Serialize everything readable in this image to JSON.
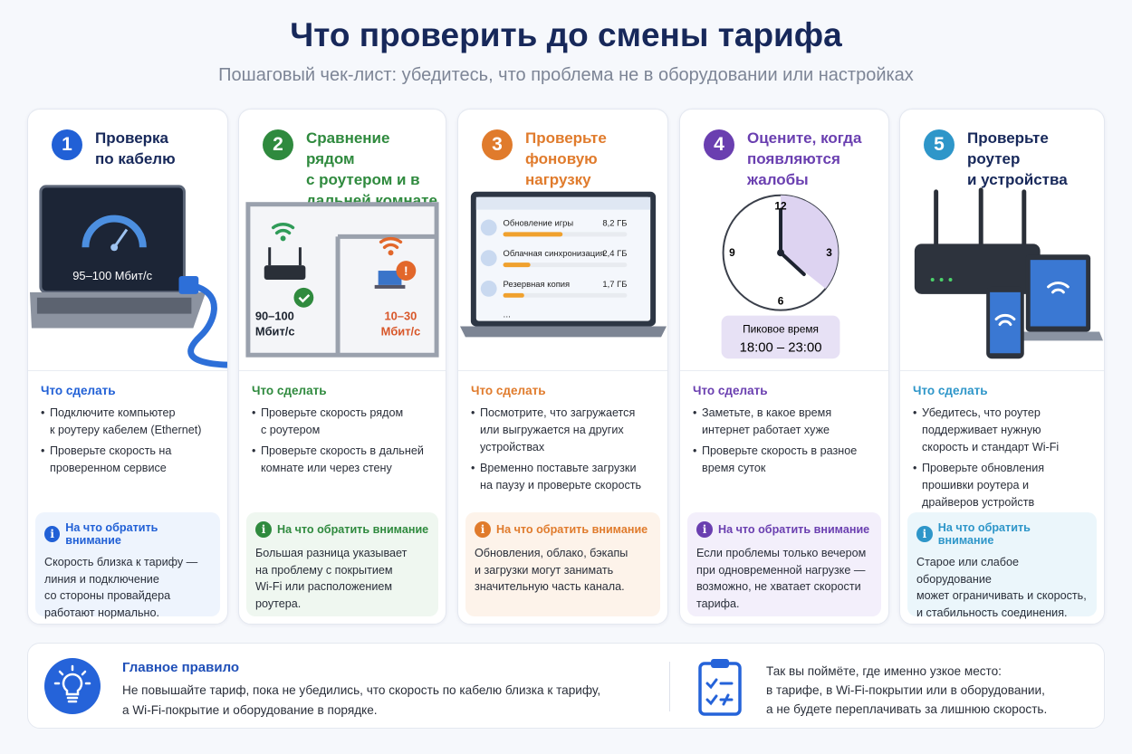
{
  "header": {
    "title": "Что проверить до смены тарифа",
    "subtitle": "Пошаговый чек-лист: убедитесь, что проблема не в оборудовании или настройках"
  },
  "colors": {
    "step1": "#2160d6",
    "step2": "#2f8a3e",
    "step3": "#e07b2c",
    "step4": "#6a3fb0",
    "step5": "#2e96c9",
    "title": "#17285a"
  },
  "todo_label": "Что сделать",
  "attention_label": "На что обратить внимание",
  "steps": [
    {
      "number": "1",
      "title": "Проверка\nпо кабелю",
      "icon": "laptop-speedometer-ethernet",
      "illustration": {
        "speed": "95–100 Мбит/с"
      },
      "todo": [
        "Подключите компьютер\nк роутеру кабелем (Ethernet)",
        "Проверьте скорость на\nпроверенном сервисе"
      ],
      "attention": "Скорость близка к тарифу —\nлиния и подключение\nсо стороны провайдера\nработают нормально."
    },
    {
      "number": "2",
      "title": "Сравнение рядом\nс роутером и в\nдальней комнате",
      "icon": "floor-plan-wifi",
      "illustration": {
        "near_speed": "90–100\nМбит/с",
        "far_speed": "10–30\nМбит/с"
      },
      "todo": [
        "Проверьте скорость рядом\nс роутером",
        "Проверьте скорость в дальней\nкомнате или через стену"
      ],
      "attention": "Большая разница указывает\nна проблему с покрытием\nWi-Fi или расположением\nроутера."
    },
    {
      "number": "3",
      "title": "Проверьте\nфоновую нагрузку",
      "icon": "laptop-downloads",
      "illustration": {
        "items": [
          {
            "name": "Обновление игры",
            "size": "8,2 ГБ",
            "progress": 0.48,
            "icon": "download-icon"
          },
          {
            "name": "Облачная синхронизация",
            "size": "2,4 ГБ",
            "progress": 0.22,
            "icon": "cloud-icon"
          },
          {
            "name": "Резервная копия",
            "size": "1,7 ГБ",
            "progress": 0.17,
            "icon": "backup-icon"
          }
        ],
        "more": "..."
      },
      "todo": [
        "Посмотрите, что загружается\nили выгружается на других\nустройствах",
        "Временно поставьте загрузки\nна паузу и проверьте скорость"
      ],
      "attention": "Обновления, облако, бэкапы\nи загрузки могут занимать\nзначительную часть канала."
    },
    {
      "number": "4",
      "title": "Оцените, когда\nпоявляются жалобы",
      "icon": "clock",
      "illustration": {
        "clock_labels": [
          "12",
          "3",
          "6",
          "9"
        ],
        "peak_label": "Пиковое время",
        "peak_time": "18:00 – 23:00"
      },
      "todo": [
        "Заметьте, в какое время\nинтернет работает хуже",
        "Проверьте скорость в разное\nвремя суток"
      ],
      "attention": "Если проблемы только вечером\nпри одновременной нагрузке —\nвозможно, не хватает скорости\nтарифа."
    },
    {
      "number": "5",
      "title": "Проверьте роутер\nи устройства",
      "icon": "router-devices",
      "illustration": {},
      "todo": [
        "Убедитесь, что роутер\nподдерживает нужную\nскорость и стандарт Wi-Fi",
        "Проверьте обновления\nпрошивки роутера и\nдрайверов устройств"
      ],
      "attention": "Старое или слабое оборудование\nможет ограничивать и скорость,\nи стабильность соединения."
    }
  ],
  "footer": {
    "rule_title": "Главное правило",
    "rule_text": "Не повышайте тариф, пока не убедились, что скорость по кабелю близка к тарифу,\nа Wi-Fi-покрытие и оборудование в порядке.",
    "summary": "Так вы поймёте, где именно узкое место:\nв тарифе, в Wi-Fi-покрытии или в оборудовании,\nа не будете переплачивать за лишнюю скорость."
  }
}
